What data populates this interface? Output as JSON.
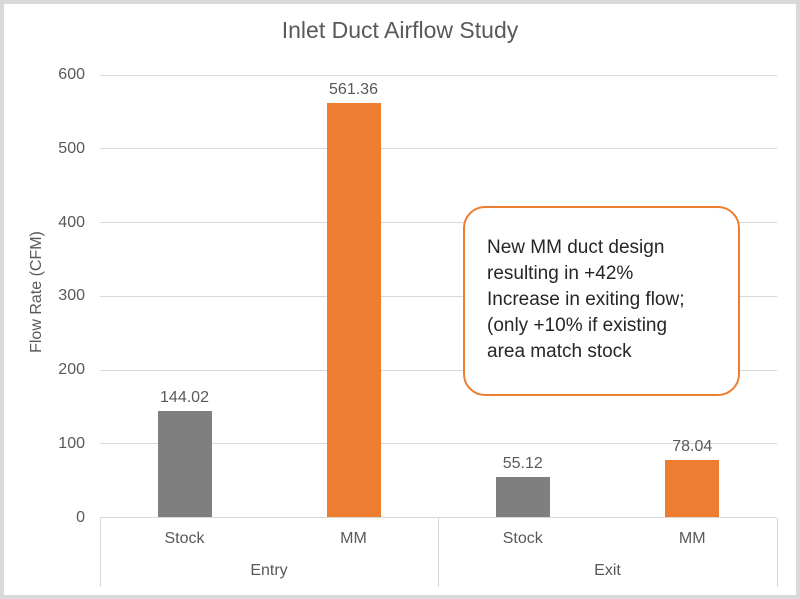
{
  "window": {
    "background": "#ffffff",
    "border_color": "#d9d9d9"
  },
  "chart": {
    "title": "Inlet Duct Airflow Study",
    "y_axis": {
      "title": "Flow Rate (CFM)"
    }
  },
  "annotation": {
    "lines": [
      "New MM duct design",
      "resulting in +42%",
      "Increase in exiting flow;",
      "(only +10% if existing",
      "area match stock"
    ],
    "border_color": "#ED7D31",
    "text_color": "#262626"
  },
  "colors": {
    "stock_bar": "#7F7F7F",
    "mm_bar": "#ED7D31",
    "gridline": "#D9D9D9",
    "axis_text": "#595959"
  },
  "chart_data": {
    "type": "bar",
    "title": "Inlet Duct Airflow Study",
    "xlabel": "",
    "ylabel": "Flow Rate (CFM)",
    "ylim": [
      0,
      600
    ],
    "ytick_interval": 100,
    "grid": true,
    "legend": false,
    "groups": [
      "Entry",
      "Exit"
    ],
    "categories": [
      "Stock",
      "MM",
      "Stock",
      "MM"
    ],
    "group_of_bar": [
      0,
      0,
      1,
      1
    ],
    "values": [
      144.02,
      561.36,
      55.12,
      78.04
    ],
    "data_labels": [
      "144.02",
      "561.36",
      "55.12",
      "78.04"
    ],
    "bar_colors": [
      "#7F7F7F",
      "#ED7D31",
      "#7F7F7F",
      "#ED7D31"
    ],
    "annotation_text": "New MM duct design resulting in +42% Increase in exiting flow; (only +10% if existing area match stock"
  }
}
